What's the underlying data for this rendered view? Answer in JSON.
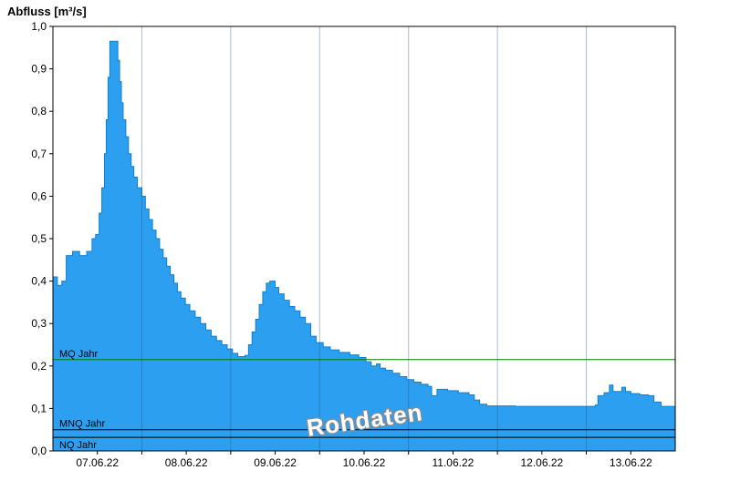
{
  "chart_data": {
    "type": "area",
    "title": "Abfluss [m³/s]",
    "watermark": {
      "text": "Rohdaten",
      "fill": "#ffffff",
      "outline": "#8c8c8c",
      "rotation_deg": -8
    },
    "x_axis": {
      "min_days": 0,
      "max_days": 7,
      "gridlines_days": [
        1,
        2,
        3,
        4,
        5,
        6
      ],
      "labels": [
        {
          "t": 0.5,
          "label": "07.06.22"
        },
        {
          "t": 1.5,
          "label": "08.06.22"
        },
        {
          "t": 2.5,
          "label": "09.06.22"
        },
        {
          "t": 3.5,
          "label": "10.06.22"
        },
        {
          "t": 4.5,
          "label": "11.06.22"
        },
        {
          "t": 5.5,
          "label": "12.06.22"
        },
        {
          "t": 6.5,
          "label": "13.06.22"
        }
      ]
    },
    "y_axis": {
      "min": 0.0,
      "max": 1.0,
      "ticks": [
        {
          "value": 0.0,
          "label": "0,0"
        },
        {
          "value": 0.1,
          "label": "0,1"
        },
        {
          "value": 0.2,
          "label": "0,2"
        },
        {
          "value": 0.3,
          "label": "0,3"
        },
        {
          "value": 0.4,
          "label": "0,4"
        },
        {
          "value": 0.5,
          "label": "0,5"
        },
        {
          "value": 0.6,
          "label": "0,6"
        },
        {
          "value": 0.7,
          "label": "0,7"
        },
        {
          "value": 0.8,
          "label": "0,8"
        },
        {
          "value": 0.9,
          "label": "0,9"
        },
        {
          "value": 1.0,
          "label": "1,0"
        }
      ]
    },
    "reference_lines": [
      {
        "label": "MQ Jahr",
        "value": 0.215,
        "color": "#007f00",
        "label_side": "above"
      },
      {
        "label": "MNQ Jahr",
        "value": 0.05,
        "color": "#000000",
        "label_side": "above"
      },
      {
        "label": "NQ Jahr",
        "value": 0.032,
        "color": "#000000",
        "label_side": "below"
      }
    ],
    "series": {
      "name": "Abfluss Rohdaten",
      "fill_color": "#2d9ff0",
      "stroke_color": "#1080d0",
      "points": [
        [
          0.0,
          0.41
        ],
        [
          0.05,
          0.39
        ],
        [
          0.1,
          0.4
        ],
        [
          0.15,
          0.46
        ],
        [
          0.22,
          0.47
        ],
        [
          0.3,
          0.46
        ],
        [
          0.38,
          0.47
        ],
        [
          0.44,
          0.5
        ],
        [
          0.48,
          0.51
        ],
        [
          0.52,
          0.56
        ],
        [
          0.55,
          0.62
        ],
        [
          0.58,
          0.7
        ],
        [
          0.6,
          0.78
        ],
        [
          0.62,
          0.88
        ],
        [
          0.64,
          0.965
        ],
        [
          0.71,
          0.965
        ],
        [
          0.73,
          0.92
        ],
        [
          0.75,
          0.87
        ],
        [
          0.77,
          0.82
        ],
        [
          0.79,
          0.78
        ],
        [
          0.82,
          0.74
        ],
        [
          0.85,
          0.7
        ],
        [
          0.88,
          0.67
        ],
        [
          0.91,
          0.645
        ],
        [
          0.95,
          0.62
        ],
        [
          1.0,
          0.6
        ],
        [
          1.04,
          0.57
        ],
        [
          1.08,
          0.545
        ],
        [
          1.12,
          0.52
        ],
        [
          1.16,
          0.5
        ],
        [
          1.2,
          0.475
        ],
        [
          1.24,
          0.455
        ],
        [
          1.28,
          0.435
        ],
        [
          1.32,
          0.415
        ],
        [
          1.36,
          0.395
        ],
        [
          1.4,
          0.375
        ],
        [
          1.44,
          0.36
        ],
        [
          1.49,
          0.345
        ],
        [
          1.54,
          0.33
        ],
        [
          1.6,
          0.315
        ],
        [
          1.66,
          0.3
        ],
        [
          1.72,
          0.285
        ],
        [
          1.78,
          0.27
        ],
        [
          1.84,
          0.26
        ],
        [
          1.9,
          0.25
        ],
        [
          1.96,
          0.24
        ],
        [
          2.02,
          0.23
        ],
        [
          2.08,
          0.222
        ],
        [
          2.16,
          0.225
        ],
        [
          2.2,
          0.25
        ],
        [
          2.24,
          0.28
        ],
        [
          2.28,
          0.31
        ],
        [
          2.32,
          0.345
        ],
        [
          2.36,
          0.375
        ],
        [
          2.4,
          0.395
        ],
        [
          2.44,
          0.4
        ],
        [
          2.5,
          0.385
        ],
        [
          2.54,
          0.37
        ],
        [
          2.6,
          0.355
        ],
        [
          2.66,
          0.34
        ],
        [
          2.72,
          0.33
        ],
        [
          2.78,
          0.315
        ],
        [
          2.84,
          0.3
        ],
        [
          2.9,
          0.27
        ],
        [
          2.96,
          0.255
        ],
        [
          3.04,
          0.245
        ],
        [
          3.12,
          0.238
        ],
        [
          3.22,
          0.232
        ],
        [
          3.34,
          0.226
        ],
        [
          3.44,
          0.22
        ],
        [
          3.52,
          0.21
        ],
        [
          3.58,
          0.2
        ],
        [
          3.64,
          0.205
        ],
        [
          3.68,
          0.195
        ],
        [
          3.74,
          0.19
        ],
        [
          3.82,
          0.183
        ],
        [
          3.9,
          0.175
        ],
        [
          3.98,
          0.168
        ],
        [
          4.06,
          0.162
        ],
        [
          4.14,
          0.157
        ],
        [
          4.22,
          0.152
        ],
        [
          4.26,
          0.13
        ],
        [
          4.32,
          0.145
        ],
        [
          4.44,
          0.142
        ],
        [
          4.56,
          0.137
        ],
        [
          4.68,
          0.132
        ],
        [
          4.74,
          0.12
        ],
        [
          4.8,
          0.11
        ],
        [
          4.88,
          0.106
        ],
        [
          5.2,
          0.105
        ],
        [
          5.6,
          0.105
        ],
        [
          6.0,
          0.105
        ],
        [
          6.1,
          0.108
        ],
        [
          6.13,
          0.13
        ],
        [
          6.2,
          0.137
        ],
        [
          6.26,
          0.155
        ],
        [
          6.3,
          0.14
        ],
        [
          6.4,
          0.15
        ],
        [
          6.44,
          0.14
        ],
        [
          6.5,
          0.135
        ],
        [
          6.6,
          0.132
        ],
        [
          6.7,
          0.13
        ],
        [
          6.76,
          0.115
        ],
        [
          6.84,
          0.105
        ],
        [
          7.0,
          0.1
        ]
      ]
    }
  }
}
